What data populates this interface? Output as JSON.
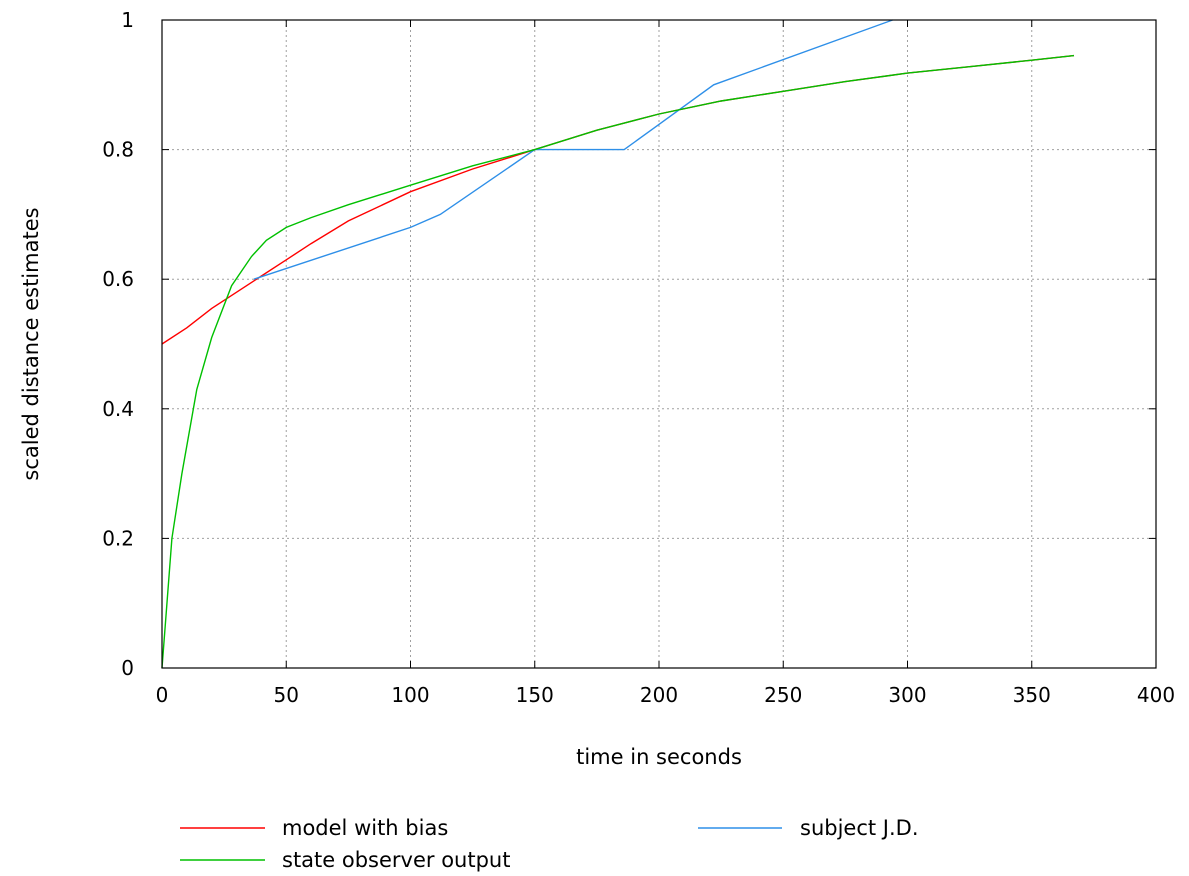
{
  "chart_data": {
    "type": "line",
    "xlabel": "time in seconds",
    "ylabel": "scaled distance estimates",
    "xlim": [
      0,
      400
    ],
    "ylim": [
      0,
      1
    ],
    "xticks": [
      "0",
      "50",
      "100",
      "150",
      "200",
      "250",
      "300",
      "350",
      "400"
    ],
    "yticks": [
      "0",
      "0.2",
      "0.4",
      "0.6",
      "0.8",
      "1"
    ],
    "grid": true,
    "legend_position": "bottom",
    "series": [
      {
        "name": "model with bias",
        "color": "#ff0000",
        "x": [
          0,
          10,
          20,
          30,
          40,
          50,
          60,
          75,
          100,
          125,
          150,
          175,
          200,
          225,
          250,
          275,
          300,
          325,
          350,
          367
        ],
        "y": [
          0.5,
          0.525,
          0.555,
          0.58,
          0.605,
          0.63,
          0.655,
          0.69,
          0.735,
          0.77,
          0.8,
          0.83,
          0.855,
          0.875,
          0.89,
          0.905,
          0.918,
          0.928,
          0.938,
          0.945
        ]
      },
      {
        "name": "subject J.D.",
        "color": "#2e8fe8",
        "x": [
          37,
          100,
          112,
          150,
          186,
          222,
          294
        ],
        "y": [
          0.6,
          0.68,
          0.7,
          0.8,
          0.8,
          0.9,
          1.0
        ]
      },
      {
        "name": "state observer output",
        "color": "#00c000",
        "x": [
          0,
          4,
          8,
          14,
          20,
          28,
          36,
          42,
          50,
          60,
          75,
          100,
          125,
          150,
          175,
          200,
          225,
          250,
          275,
          300,
          325,
          350,
          367
        ],
        "y": [
          0.0,
          0.2,
          0.3,
          0.43,
          0.51,
          0.59,
          0.635,
          0.66,
          0.68,
          0.695,
          0.715,
          0.745,
          0.775,
          0.8,
          0.83,
          0.855,
          0.875,
          0.89,
          0.905,
          0.918,
          0.928,
          0.938,
          0.945
        ]
      }
    ]
  }
}
